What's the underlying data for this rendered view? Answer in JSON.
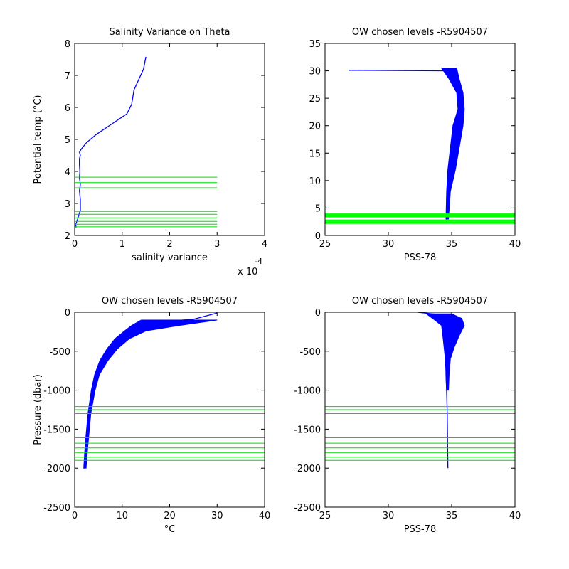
{
  "chart_data": [
    {
      "type": "line",
      "title": "Salinity Variance on Theta",
      "xlabel": "salinity variance",
      "ylabel": "Potential temp (°C)",
      "x_multiplier_label": "x 10",
      "x_multiplier_exponent": "-4",
      "xlim": [
        0,
        4
      ],
      "ylim": [
        2,
        8
      ],
      "xticks": [
        0,
        1,
        2,
        3,
        4
      ],
      "yticks": [
        2,
        3,
        4,
        5,
        6,
        7,
        8
      ],
      "series": [
        {
          "color": "#0000ff",
          "x": [
            0.03,
            0.02,
            0.05,
            0.08,
            0.12,
            0.12,
            0.1,
            0.12,
            0.1,
            0.11,
            0.1,
            0.1,
            0.12,
            0.1,
            0.14,
            0.25,
            0.45,
            0.8,
            1.1,
            1.2,
            1.25,
            1.45,
            1.5
          ],
          "y": [
            2.25,
            2.35,
            2.45,
            2.6,
            2.8,
            3.1,
            3.4,
            3.6,
            3.8,
            4.0,
            4.2,
            4.4,
            4.5,
            4.6,
            4.7,
            4.9,
            5.15,
            5.5,
            5.8,
            6.1,
            6.55,
            7.2,
            7.58
          ]
        }
      ],
      "hlines": {
        "color": "#00dd00",
        "xrange": [
          0,
          3
        ],
        "y": [
          2.27,
          2.35,
          2.44,
          2.55,
          2.66,
          2.75,
          3.49,
          3.65,
          3.82
        ]
      }
    },
    {
      "type": "line",
      "title": "OW chosen levels -R5904507",
      "xlabel": "PSS-78",
      "ylabel": "",
      "xlim": [
        25,
        40
      ],
      "ylim": [
        0,
        35
      ],
      "xticks": [
        25,
        30,
        35,
        40
      ],
      "yticks": [
        0,
        5,
        10,
        15,
        20,
        25,
        30,
        35
      ],
      "series": [
        {
          "color": "#0000ff",
          "x": [
            34.6,
            34.6,
            34.65,
            34.8,
            35.1,
            35.5,
            35.8,
            35.6,
            35.5,
            35.3,
            35.0,
            26.9
          ],
          "y": [
            2.2,
            5,
            8,
            11,
            15,
            19,
            23,
            26,
            28,
            29.5,
            30,
            30.1
          ]
        }
      ],
      "band": {
        "xlo": [
          34.55,
          34.6,
          34.7,
          34.9,
          35.1,
          35.5,
          35.4,
          34.8,
          34.2
        ],
        "xhi": [
          34.75,
          34.9,
          35.3,
          35.6,
          35.9,
          36.0,
          35.9,
          35.6,
          35.4
        ],
        "y": [
          3,
          8,
          12,
          16,
          20,
          23,
          26,
          28.5,
          30.5
        ]
      },
      "hlines": {
        "color": "#00ff00",
        "thick": true,
        "y": [
          2.3,
          2.7,
          3.5,
          3.8
        ]
      }
    },
    {
      "type": "line",
      "title": "OW chosen levels -R5904507",
      "xlabel": "°C",
      "ylabel": "Pressure (dbar)",
      "xlim": [
        0,
        40
      ],
      "ylim": [
        -2500,
        0
      ],
      "xticks": [
        0,
        10,
        20,
        30,
        40
      ],
      "yticks": [
        0,
        -500,
        -1000,
        -1500,
        -2000,
        -2500
      ],
      "series": [
        {
          "color": "#0000ff",
          "x": [
            2.1,
            2.4,
            3.0,
            3.8,
            4.6,
            6.0,
            7.5,
            9.5,
            11.5,
            13,
            18,
            25,
            30
          ],
          "y": [
            -2000,
            -1700,
            -1300,
            -1000,
            -800,
            -620,
            -470,
            -350,
            -250,
            -160,
            -120,
            -90,
            -10
          ]
        }
      ],
      "band": {
        "xlo": [
          1.9,
          2.2,
          2.8,
          3.5,
          4.2,
          5.3,
          6.8,
          8.5,
          10.5,
          12,
          14
        ],
        "xhi": [
          2.4,
          2.8,
          3.4,
          4.3,
          5.2,
          7.0,
          9.0,
          11.5,
          15,
          22,
          30
        ],
        "y": [
          -2000,
          -1700,
          -1300,
          -1000,
          -800,
          -620,
          -470,
          -340,
          -240,
          -170,
          -100
        ]
      },
      "hlines": {
        "color": "#00dd00",
        "xrange": [
          0,
          40
        ],
        "y": [
          -1210,
          -1250,
          -1300,
          -1610,
          -1680,
          -1740,
          -1800,
          -1860,
          -1900
        ]
      }
    },
    {
      "type": "line",
      "title": "OW chosen levels -R5904507",
      "xlabel": "PSS-78",
      "ylabel": "",
      "xlim": [
        25,
        40
      ],
      "ylim": [
        -2500,
        0
      ],
      "xticks": [
        25,
        30,
        35,
        40
      ],
      "yticks": [
        0,
        -500,
        -1000,
        -1500,
        -2000,
        -2500
      ],
      "series": [
        {
          "color": "#0000ff",
          "x": [
            34.7,
            34.68,
            34.65,
            34.6,
            34.55,
            34.6,
            34.7,
            35.0,
            35.5,
            35.8,
            35.0,
            34.0,
            32.3
          ],
          "y": [
            -2000,
            -1700,
            -1300,
            -1000,
            -800,
            -600,
            -400,
            -300,
            -200,
            -140,
            -80,
            -30,
            0
          ]
        }
      ],
      "band": {
        "xlo": [
          34.6,
          34.55,
          34.5,
          34.4,
          34.3,
          34.2,
          33.5,
          33.0
        ],
        "xhi": [
          34.75,
          34.8,
          34.9,
          35.2,
          35.6,
          36.0,
          35.8,
          35.0
        ],
        "y": [
          -1000,
          -800,
          -600,
          -450,
          -300,
          -170,
          -80,
          -20
        ]
      },
      "hlines": {
        "color": "#00dd00",
        "xrange": [
          25,
          40
        ],
        "y": [
          -1210,
          -1250,
          -1300,
          -1610,
          -1680,
          -1740,
          -1800,
          -1860,
          -1900
        ]
      }
    }
  ]
}
